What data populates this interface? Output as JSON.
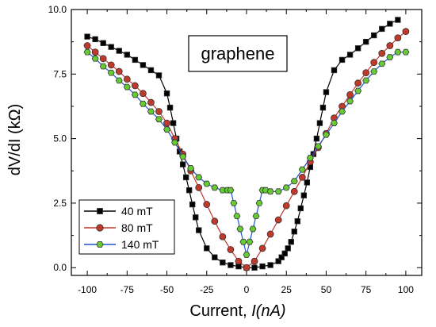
{
  "chart_data": {
    "type": "line",
    "annotation": "graphene",
    "xlabel_prefix": "Current, ",
    "xlabel_italic": "I(nA)",
    "ylabel": "dV/dI (kΩ)",
    "xlim": [
      -110,
      110
    ],
    "ylim": [
      -0.3,
      10
    ],
    "x_ticks": [
      -100,
      -75,
      -50,
      -25,
      0,
      25,
      50,
      75,
      100
    ],
    "x_tick_labels": [
      "-100",
      "-75",
      "-50",
      "-25",
      "0",
      "25",
      "50",
      "75",
      "100"
    ],
    "y_ticks": [
      0,
      2.5,
      5,
      7.5,
      10
    ],
    "y_tick_labels": [
      "0.0",
      "2.5",
      "5.0",
      "7.5",
      "10.0"
    ],
    "legend_position": "lower-left",
    "series": [
      {
        "name": "40 mT",
        "color": "#000000",
        "marker": "square",
        "marker_fill": "#000000",
        "x": [
          -100,
          -95,
          -90,
          -85,
          -80,
          -75,
          -70,
          -65,
          -60,
          -55,
          -50,
          -48,
          -46,
          -44,
          -42,
          -40,
          -38,
          -36,
          -34,
          -32,
          -30,
          -25,
          -20,
          -15,
          -10,
          -5,
          0,
          5,
          10,
          15,
          20,
          22,
          24,
          26,
          28,
          30,
          32,
          34,
          36,
          38,
          40,
          42,
          44,
          46,
          48,
          50,
          55,
          60,
          65,
          70,
          75,
          80,
          85,
          90,
          95
        ],
        "y": [
          8.95,
          8.85,
          8.7,
          8.55,
          8.4,
          8.25,
          8.05,
          7.85,
          7.65,
          7.45,
          6.75,
          6.2,
          5.6,
          5.0,
          4.5,
          4.0,
          3.5,
          3.0,
          2.45,
          1.95,
          1.45,
          0.75,
          0.4,
          0.2,
          0.1,
          0.05,
          0.0,
          0.0,
          0.05,
          0.1,
          0.25,
          0.4,
          0.55,
          0.75,
          1.0,
          1.4,
          1.8,
          2.3,
          2.8,
          3.3,
          3.9,
          4.4,
          5.0,
          5.6,
          6.2,
          6.8,
          7.65,
          8.05,
          8.25,
          8.5,
          8.75,
          9.0,
          9.25,
          9.45,
          9.6
        ]
      },
      {
        "name": "80 mT",
        "color": "#c0392b",
        "marker": "circle",
        "marker_fill": "#c0392b",
        "x": [
          -100,
          -95,
          -90,
          -85,
          -80,
          -75,
          -70,
          -65,
          -60,
          -55,
          -50,
          -45,
          -40,
          -35,
          -30,
          -25,
          -20,
          -15,
          -10,
          -5,
          0,
          5,
          10,
          15,
          20,
          25,
          30,
          35,
          40,
          45,
          50,
          55,
          60,
          65,
          70,
          75,
          80,
          85,
          90,
          95,
          100
        ],
        "y": [
          8.6,
          8.35,
          8.1,
          7.85,
          7.6,
          7.3,
          7.05,
          6.75,
          6.4,
          6.05,
          5.6,
          5.0,
          4.4,
          3.75,
          3.1,
          2.45,
          1.8,
          1.2,
          0.7,
          0.25,
          0.0,
          0.25,
          0.75,
          1.3,
          1.85,
          2.4,
          2.95,
          3.5,
          4.1,
          4.65,
          5.2,
          5.8,
          6.25,
          6.7,
          7.15,
          7.55,
          7.95,
          8.3,
          8.6,
          8.9,
          9.15
        ]
      },
      {
        "name": "140 mT",
        "color": "#2255cc",
        "marker": "hexagon",
        "marker_fill": "#66cc33",
        "x": [
          -100,
          -95,
          -90,
          -85,
          -80,
          -75,
          -70,
          -65,
          -60,
          -55,
          -50,
          -45,
          -40,
          -35,
          -30,
          -25,
          -20,
          -15,
          -12,
          -10,
          -8,
          -6,
          -4,
          -2,
          0,
          2,
          4,
          6,
          8,
          10,
          12,
          15,
          20,
          25,
          30,
          35,
          40,
          45,
          50,
          55,
          60,
          65,
          70,
          75,
          80,
          85,
          90,
          95,
          100
        ],
        "y": [
          8.35,
          8.1,
          7.8,
          7.55,
          7.25,
          7.0,
          6.7,
          6.35,
          6.05,
          5.75,
          5.35,
          4.85,
          4.3,
          3.85,
          3.5,
          3.25,
          3.1,
          3.0,
          3.0,
          3.0,
          2.5,
          2.0,
          1.5,
          1.0,
          0.5,
          1.0,
          1.5,
          2.0,
          2.5,
          3.0,
          3.0,
          2.95,
          2.95,
          3.1,
          3.35,
          3.8,
          4.25,
          4.7,
          5.15,
          5.6,
          6.05,
          6.45,
          6.85,
          7.25,
          7.6,
          7.9,
          8.15,
          8.35,
          8.35
        ]
      }
    ]
  }
}
